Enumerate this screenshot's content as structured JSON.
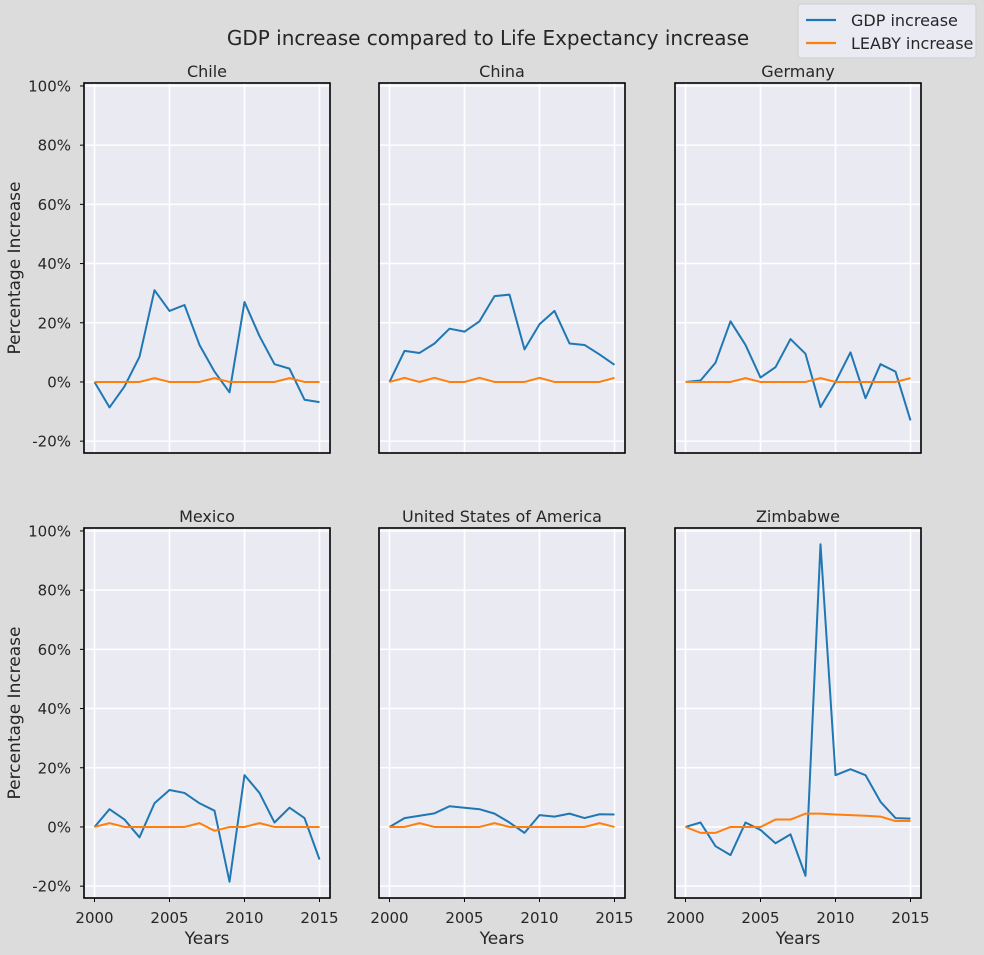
{
  "title": "GDP increase compared to Life Expectancy increase",
  "legend": {
    "placement": "top-right",
    "entries": [
      {
        "label": "GDP increase",
        "color": "#1f77b4"
      },
      {
        "label": "LEABY increase",
        "color": "#ff7f0e"
      }
    ]
  },
  "chart_data": {
    "type": "line",
    "layout": "2x3 small multiples, shared axes",
    "xlabel": "Years",
    "ylabel": "Percentage Increase",
    "xlim": [
      1999.3,
      2015.7
    ],
    "ylim": [
      -24,
      101
    ],
    "x_ticks": [
      2000,
      2005,
      2010,
      2015
    ],
    "y_ticks": [
      -20,
      0,
      20,
      40,
      60,
      80,
      100
    ],
    "y_tick_format": "percent",
    "grid": true,
    "x": [
      2000,
      2001,
      2002,
      2003,
      2004,
      2005,
      2006,
      2007,
      2008,
      2009,
      2010,
      2011,
      2012,
      2013,
      2014,
      2015
    ],
    "panels": [
      {
        "title": "Chile",
        "series": [
          {
            "name": "GDP increase",
            "color": "#1f77b4",
            "values": [
              0,
              -8.6,
              -1.5,
              8.5,
              31,
              24,
              26,
              12.5,
              3.5,
              -3.5,
              27,
              15.5,
              6,
              4.5,
              -6,
              -6.8
            ]
          },
          {
            "name": "LEABY increase",
            "color": "#ff7f0e",
            "values": [
              0,
              0,
              0,
              0,
              1.3,
              0,
              0,
              0,
              1.3,
              0,
              0,
              0,
              0,
              1.3,
              0,
              0
            ]
          }
        ]
      },
      {
        "title": "China",
        "series": [
          {
            "name": "GDP increase",
            "color": "#1f77b4",
            "values": [
              0,
              10.5,
              9.8,
              13,
              18,
              17,
              20.5,
              29,
              29.5,
              11,
              19.5,
              24,
              13,
              12.5,
              9.3,
              5.8
            ]
          },
          {
            "name": "LEABY increase",
            "color": "#ff7f0e",
            "values": [
              0,
              1.4,
              0,
              1.4,
              0,
              0,
              1.4,
              0,
              0,
              0,
              1.4,
              0,
              0,
              0,
              0,
              1.4
            ]
          }
        ]
      },
      {
        "title": "Germany",
        "series": [
          {
            "name": "GDP increase",
            "color": "#1f77b4",
            "values": [
              0,
              0.5,
              6.5,
              20.5,
              12.5,
              1.5,
              5,
              14.5,
              9.5,
              -8.5,
              0,
              10,
              -5.5,
              6,
              3.5,
              -13
            ]
          },
          {
            "name": "LEABY increase",
            "color": "#ff7f0e",
            "values": [
              0,
              0,
              0,
              0,
              1.3,
              0,
              0,
              0,
              0,
              1.3,
              0,
              0,
              0,
              0,
              0,
              1.3
            ]
          }
        ]
      },
      {
        "title": "Mexico",
        "series": [
          {
            "name": "GDP increase",
            "color": "#1f77b4",
            "values": [
              0,
              6,
              2.5,
              -3.5,
              8,
              12.5,
              11.5,
              8,
              5.5,
              -18.5,
              17.5,
              11.5,
              1.5,
              6.5,
              3,
              -11
            ]
          },
          {
            "name": "LEABY increase",
            "color": "#ff7f0e",
            "values": [
              0,
              1.3,
              0,
              0,
              0,
              0,
              0,
              1.3,
              -1.3,
              0,
              0,
              1.3,
              0,
              0,
              0,
              0
            ]
          }
        ]
      },
      {
        "title": "United States of America",
        "series": [
          {
            "name": "GDP increase",
            "color": "#1f77b4",
            "values": [
              0,
              3,
              3.8,
              4.6,
              7,
              6.5,
              6,
              4.5,
              1.5,
              -2,
              4,
              3.5,
              4.5,
              3,
              4.3,
              4.2
            ]
          },
          {
            "name": "LEABY increase",
            "color": "#ff7f0e",
            "values": [
              0,
              0,
              1.3,
              0,
              0,
              0,
              0,
              1.3,
              0,
              0,
              0,
              0,
              0,
              0,
              1.3,
              0
            ]
          }
        ]
      },
      {
        "title": "Zimbabwe",
        "series": [
          {
            "name": "GDP increase",
            "color": "#1f77b4",
            "values": [
              0,
              1.5,
              -6.5,
              -9.5,
              1.5,
              -1,
              -5.5,
              -2.5,
              -16.5,
              95.5,
              17.5,
              19.5,
              17.5,
              8.5,
              3,
              2.8
            ]
          },
          {
            "name": "LEABY increase",
            "color": "#ff7f0e",
            "values": [
              0,
              -2,
              -2,
              0,
              0,
              0,
              2.5,
              2.5,
              4.5,
              4.5,
              4.2,
              4,
              3.8,
              3.5,
              2,
              2
            ]
          }
        ]
      }
    ]
  }
}
